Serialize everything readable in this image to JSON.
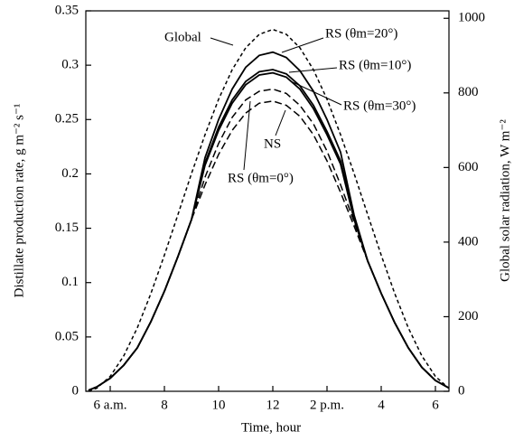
{
  "chart_data": {
    "type": "line",
    "x_label": "Time, hour",
    "y_label": "Distillate production rate, g m⁻² s⁻¹",
    "y2_label": "Global solar radiation, W m⁻²",
    "x": [
      5.2,
      5.5,
      6,
      6.5,
      7,
      7.5,
      8,
      8.5,
      9,
      9.5,
      10,
      10.5,
      11,
      11.5,
      12,
      12.5,
      13,
      13.5,
      14,
      14.5,
      15,
      15.5,
      16,
      16.5,
      17,
      17.5,
      18,
      18.5
    ],
    "xlim": [
      5.1,
      18.5
    ],
    "xticks": [
      {
        "value": 6,
        "label": "6 a.m."
      },
      8,
      10,
      12,
      {
        "value": 14,
        "label": "2 p.m."
      },
      {
        "value": 16,
        "label": "4"
      },
      {
        "value": 18,
        "label": "6"
      }
    ],
    "ylim": [
      0,
      0.35
    ],
    "yticks": [
      0,
      0.05,
      0.1,
      0.15,
      0.2,
      0.25,
      0.3,
      0.35
    ],
    "y2lim": [
      0,
      1020
    ],
    "y2ticks": [
      0,
      200,
      400,
      600,
      800,
      1000
    ],
    "series": [
      {
        "name": "Global",
        "color": "#000000",
        "style": "dashed",
        "axis": "y2",
        "values": [
          1,
          8,
          40,
          95,
          170,
          262,
          365,
          474,
          584,
          688,
          783,
          862,
          921,
          957,
          970,
          957,
          921,
          862,
          783,
          688,
          584,
          474,
          365,
          262,
          170,
          95,
          40,
          8
        ]
      },
      {
        "name": "RS (θm=20°)",
        "color": "#000000",
        "style": "solid",
        "values": [
          0.001,
          0.004,
          0.012,
          0.024,
          0.04,
          0.064,
          0.092,
          0.124,
          0.158,
          0.215,
          0.25,
          0.278,
          0.298,
          0.309,
          0.312,
          0.307,
          0.295,
          0.276,
          0.25,
          0.22,
          0.162,
          0.12,
          0.09,
          0.063,
          0.04,
          0.022,
          0.01,
          0.003
        ]
      },
      {
        "name": "RS (θm=10°)",
        "color": "#000000",
        "style": "solid",
        "values": [
          0.001,
          0.004,
          0.012,
          0.024,
          0.04,
          0.064,
          0.092,
          0.124,
          0.158,
          0.21,
          0.243,
          0.268,
          0.285,
          0.294,
          0.296,
          0.292,
          0.281,
          0.263,
          0.239,
          0.212,
          0.16,
          0.12,
          0.09,
          0.063,
          0.04,
          0.022,
          0.01,
          0.003
        ]
      },
      {
        "name": "RS (θm=30°)",
        "color": "#000000",
        "style": "solid",
        "values": [
          0.001,
          0.004,
          0.012,
          0.024,
          0.04,
          0.064,
          0.092,
          0.124,
          0.158,
          0.208,
          0.24,
          0.265,
          0.282,
          0.291,
          0.293,
          0.289,
          0.278,
          0.26,
          0.236,
          0.209,
          0.158,
          0.12,
          0.09,
          0.063,
          0.04,
          0.022,
          0.01,
          0.003
        ]
      },
      {
        "name": "NS",
        "color": "#000000",
        "style": "dashed",
        "values": [
          0.001,
          0.004,
          0.012,
          0.024,
          0.04,
          0.064,
          0.092,
          0.124,
          0.158,
          0.19,
          0.218,
          0.24,
          0.256,
          0.265,
          0.267,
          0.263,
          0.253,
          0.236,
          0.212,
          0.183,
          0.152,
          0.12,
          0.09,
          0.063,
          0.04,
          0.022,
          0.01,
          0.003
        ]
      },
      {
        "name": "RS (θm=0°)",
        "color": "#000000",
        "style": "dashed",
        "values": [
          0.001,
          0.004,
          0.012,
          0.024,
          0.04,
          0.064,
          0.092,
          0.124,
          0.158,
          0.197,
          0.228,
          0.252,
          0.268,
          0.276,
          0.278,
          0.274,
          0.263,
          0.246,
          0.221,
          0.19,
          0.156,
          0.12,
          0.09,
          0.063,
          0.04,
          0.022,
          0.01,
          0.003
        ]
      }
    ]
  }
}
